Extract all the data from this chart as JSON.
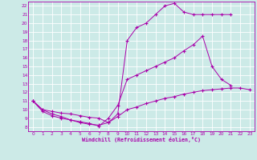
{
  "xlabel": "Windchill (Refroidissement éolien,°C)",
  "bg_color": "#cceae7",
  "grid_color": "#ffffff",
  "line_color": "#aa00aa",
  "xlim": [
    -0.5,
    23.5
  ],
  "ylim": [
    7.5,
    22.5
  ],
  "xticks": [
    0,
    1,
    2,
    3,
    4,
    5,
    6,
    7,
    8,
    9,
    10,
    11,
    12,
    13,
    14,
    15,
    16,
    17,
    18,
    19,
    20,
    21,
    22,
    23
  ],
  "yticks": [
    8,
    9,
    10,
    11,
    12,
    13,
    14,
    15,
    16,
    17,
    18,
    19,
    20,
    21,
    22
  ],
  "curve1_x": [
    0,
    1,
    2,
    3,
    4,
    5,
    6,
    7,
    8,
    9,
    10,
    11,
    12,
    13,
    14,
    15,
    16,
    17,
    18,
    19,
    20,
    21
  ],
  "curve1_y": [
    11.0,
    10.0,
    9.5,
    9.2,
    8.8,
    8.5,
    8.3,
    8.2,
    8.5,
    9.5,
    18.0,
    19.5,
    20.0,
    21.0,
    22.0,
    22.3,
    21.3,
    21.0,
    21.0,
    21.0,
    21.0,
    21.0
  ],
  "curve2_x": [
    0,
    1,
    2,
    3,
    4,
    5,
    6,
    7,
    8,
    9,
    10,
    11,
    12,
    13,
    14,
    15,
    16,
    17,
    18,
    19,
    20,
    21
  ],
  "curve2_y": [
    11.0,
    9.8,
    9.3,
    9.0,
    8.8,
    8.6,
    8.4,
    8.1,
    9.0,
    10.5,
    13.5,
    14.0,
    14.5,
    15.0,
    15.5,
    16.0,
    16.8,
    17.5,
    18.5,
    15.0,
    13.5,
    12.8
  ],
  "curve3_x": [
    0,
    1,
    2,
    3,
    4,
    5,
    6,
    7,
    8,
    9,
    10,
    11,
    12,
    13,
    14,
    15,
    16,
    17,
    18,
    19,
    20,
    21,
    22,
    23
  ],
  "curve3_y": [
    11.0,
    10.0,
    9.8,
    9.6,
    9.5,
    9.3,
    9.1,
    9.0,
    8.5,
    9.2,
    10.0,
    10.3,
    10.7,
    11.0,
    11.3,
    11.5,
    11.8,
    12.0,
    12.2,
    12.3,
    12.4,
    12.5,
    12.5,
    12.3
  ]
}
